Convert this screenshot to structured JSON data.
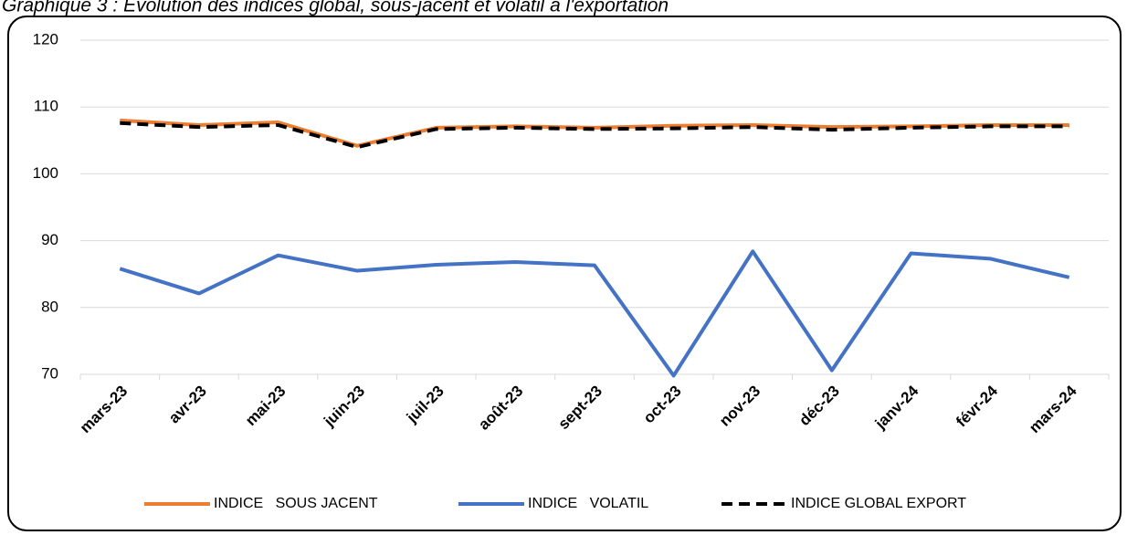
{
  "chart_data": {
    "type": "line",
    "title": "Graphique 3 : Evolution des indices global, sous-jacent et volatil à l'exportation",
    "categories": [
      "mars-23",
      "avr-23",
      "mai-23",
      "juin-23",
      "juil-23",
      "août-23",
      "sept-23",
      "oct-23",
      "nov-23",
      "déc-23",
      "janv-24",
      "févr-24",
      "mars-24"
    ],
    "series": [
      {
        "name": "INDICE   SOUS JACENT",
        "color": "#ed7d31",
        "dashed": false,
        "values": [
          108.0,
          107.3,
          107.7,
          104.2,
          106.9,
          107.1,
          106.9,
          107.2,
          107.3,
          107.0,
          107.1,
          107.3,
          107.3
        ]
      },
      {
        "name": "INDICE   VOLATIL",
        "color": "#4472c4",
        "dashed": false,
        "values": [
          85.8,
          82.1,
          87.8,
          85.5,
          86.4,
          86.8,
          86.3,
          69.8,
          88.4,
          70.6,
          88.1,
          87.3,
          84.5
        ]
      },
      {
        "name": "INDICE GLOBAL EXPORT",
        "color": "#000000",
        "dashed": true,
        "values": [
          107.6,
          107.0,
          107.3,
          104.0,
          106.7,
          106.9,
          106.7,
          106.8,
          107.0,
          106.6,
          106.9,
          107.1,
          107.1
        ]
      }
    ],
    "ylim": [
      70,
      120
    ],
    "yticks": [
      70,
      80,
      90,
      100,
      110,
      120
    ],
    "grid": true,
    "legend": "bottom"
  }
}
